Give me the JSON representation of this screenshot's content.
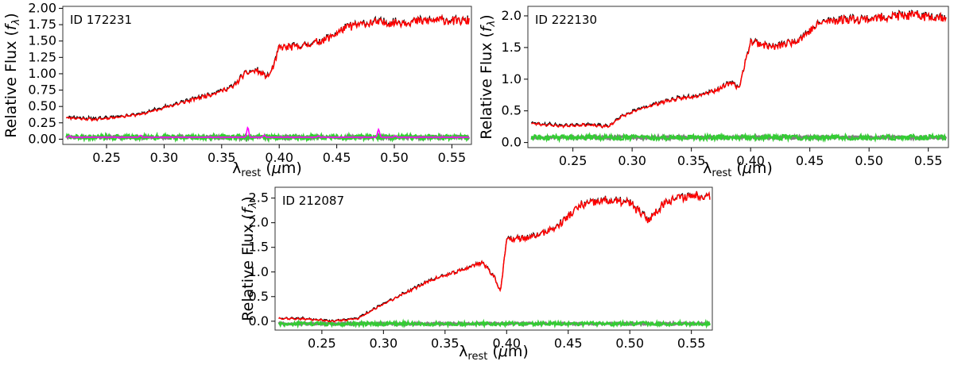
{
  "chart_data": [
    {
      "type": "line",
      "annotation": "ID 172231",
      "xlabel": "λrest (μm)",
      "ylabel": "Relative Flux (fλ)",
      "xlim": [
        0.212,
        0.567
      ],
      "ylim": [
        -0.08,
        2.03
      ],
      "xticks": [
        "0.25",
        "0.30",
        "0.35",
        "0.40",
        "0.45",
        "0.50",
        "0.55"
      ],
      "yticks": [
        "0.00",
        "0.25",
        "0.50",
        "0.75",
        "1.00",
        "1.25",
        "1.50",
        "1.75",
        "2.00"
      ],
      "grid": false,
      "colors": {
        "observed": "#000000",
        "model": "#ff0000",
        "residual": "#33cc33",
        "error": "#808080",
        "emission": "#ff00ff"
      },
      "series": [
        {
          "key": "model",
          "x": [
            0.215,
            0.24,
            0.26,
            0.28,
            0.3,
            0.32,
            0.34,
            0.36,
            0.37,
            0.38,
            0.39,
            0.395,
            0.4,
            0.42,
            0.44,
            0.46,
            0.48,
            0.5,
            0.52,
            0.54,
            0.565
          ],
          "y": [
            0.33,
            0.3,
            0.34,
            0.38,
            0.48,
            0.58,
            0.68,
            0.8,
            1.0,
            1.05,
            0.95,
            1.1,
            1.4,
            1.42,
            1.52,
            1.72,
            1.78,
            1.78,
            1.8,
            1.82,
            1.8
          ]
        },
        {
          "key": "residual",
          "x": [
            0.215,
            0.565
          ],
          "y": [
            0.03,
            0.03
          ]
        },
        {
          "key": "emission",
          "lines": [
            [
              0.2175,
              0.02
            ],
            [
              0.2795,
              0.06
            ],
            [
              0.3727,
              0.18
            ],
            [
              0.3869,
              0.06
            ],
            [
              0.4342,
              0.05
            ],
            [
              0.4863,
              0.15
            ],
            [
              0.5008,
              0.05
            ]
          ]
        }
      ]
    },
    {
      "type": "line",
      "annotation": "ID 222130",
      "xlabel": "λrest (μm)",
      "ylabel": "Relative Flux (fλ)",
      "xlim": [
        0.212,
        0.567
      ],
      "ylim": [
        -0.08,
        2.15
      ],
      "xticks": [
        "0.25",
        "0.30",
        "0.35",
        "0.40",
        "0.45",
        "0.50",
        "0.55"
      ],
      "yticks": [
        "0.0",
        "0.5",
        "1.0",
        "1.5",
        "2.0"
      ],
      "grid": false,
      "colors": {
        "observed": "#000000",
        "model": "#ff0000",
        "residual": "#33cc33",
        "error": "#808080",
        "emission": "#ff00ff"
      },
      "series": [
        {
          "key": "model",
          "x": [
            0.215,
            0.24,
            0.26,
            0.28,
            0.29,
            0.31,
            0.33,
            0.35,
            0.37,
            0.385,
            0.39,
            0.4,
            0.42,
            0.44,
            0.46,
            0.48,
            0.5,
            0.52,
            0.54,
            0.565
          ],
          "y": [
            0.3,
            0.26,
            0.28,
            0.25,
            0.4,
            0.55,
            0.66,
            0.72,
            0.82,
            0.95,
            0.85,
            1.6,
            1.5,
            1.62,
            1.9,
            1.95,
            1.95,
            2.0,
            2.0,
            1.98
          ]
        },
        {
          "key": "residual",
          "x": [
            0.215,
            0.565
          ],
          "y": [
            0.08,
            0.08
          ]
        }
      ]
    },
    {
      "type": "line",
      "annotation": "ID 212087",
      "xlabel": "λrest (μm)",
      "ylabel": "Relative Flux (fλ)",
      "xlim": [
        0.212,
        0.567
      ],
      "ylim": [
        -0.18,
        2.72
      ],
      "xticks": [
        "0.25",
        "0.30",
        "0.35",
        "0.40",
        "0.45",
        "0.50",
        "0.55"
      ],
      "yticks": [
        "0.0",
        "0.5",
        "1.0",
        "1.5",
        "2.0",
        "2.5"
      ],
      "grid": false,
      "colors": {
        "observed": "#000000",
        "model": "#ff0000",
        "residual": "#33cc33",
        "error": "#808080",
        "emission": "#ff00ff"
      },
      "series": [
        {
          "key": "model",
          "x": [
            0.215,
            0.24,
            0.26,
            0.28,
            0.3,
            0.32,
            0.34,
            0.36,
            0.38,
            0.39,
            0.395,
            0.4,
            0.42,
            0.44,
            0.46,
            0.48,
            0.5,
            0.515,
            0.53,
            0.55,
            0.565
          ],
          "y": [
            0.06,
            0.04,
            0.0,
            0.06,
            0.35,
            0.6,
            0.85,
            1.0,
            1.2,
            0.9,
            0.6,
            1.65,
            1.7,
            1.9,
            2.35,
            2.45,
            2.4,
            2.05,
            2.45,
            2.55,
            2.55
          ]
        },
        {
          "key": "residual",
          "x": [
            0.215,
            0.565
          ],
          "y": [
            -0.05,
            -0.05
          ]
        }
      ]
    }
  ]
}
